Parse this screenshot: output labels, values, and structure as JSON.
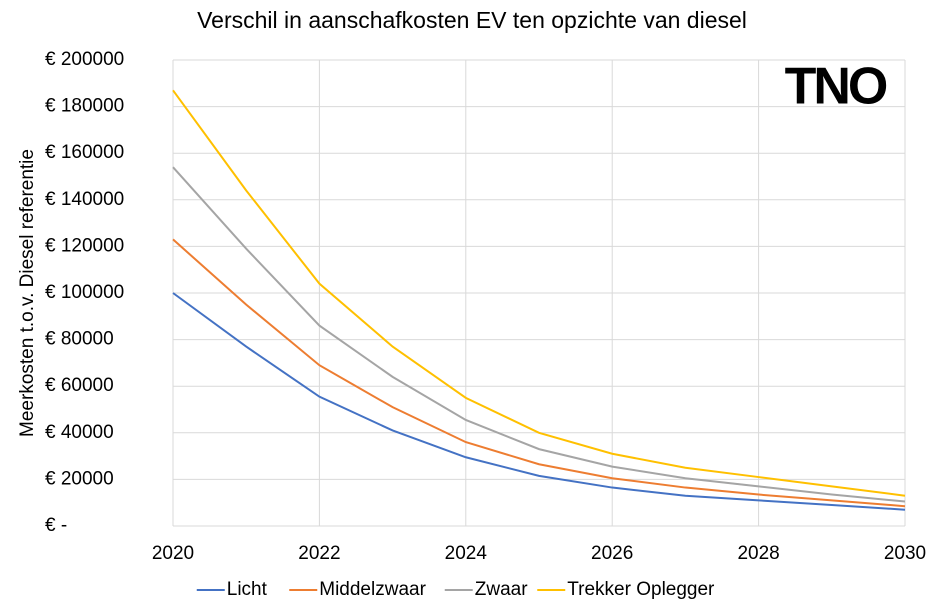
{
  "chart_data": {
    "type": "line",
    "title": "Verschil in aanschafkosten EV ten opzichte van diesel",
    "logo": "TNO",
    "y_label": "Meerkosten t.o.v. Diesel referentie",
    "x": [
      2020,
      2021,
      2022,
      2023,
      2024,
      2025,
      2026,
      2027,
      2028,
      2029,
      2030
    ],
    "series": [
      {
        "name": "Licht",
        "color": "#4472c4",
        "values": [
          100000,
          77000,
          55500,
          41000,
          29500,
          21500,
          16500,
          13000,
          11000,
          9000,
          7000
        ]
      },
      {
        "name": "Middelzwaar",
        "color": "#ed7d31",
        "values": [
          123000,
          95000,
          69000,
          51000,
          36000,
          26500,
          20500,
          16500,
          13500,
          11000,
          8500
        ]
      },
      {
        "name": "Zwaar",
        "color": "#a5a5a5",
        "values": [
          154000,
          119000,
          86000,
          64000,
          45500,
          33000,
          25500,
          20500,
          17000,
          13500,
          10500
        ]
      },
      {
        "name": "Trekker Oplegger",
        "color": "#ffc000",
        "values": [
          187000,
          144000,
          104000,
          77000,
          55000,
          40000,
          31000,
          25000,
          21000,
          17000,
          13000
        ]
      }
    ],
    "xlim": [
      2020,
      2030
    ],
    "xticks": [
      2020,
      2022,
      2024,
      2026,
      2028,
      2030
    ],
    "ylim": [
      0,
      200000
    ],
    "yticks": [
      {
        "value": 0,
        "label": "€ -"
      },
      {
        "value": 20000,
        "label": "€ 20000"
      },
      {
        "value": 40000,
        "label": "€ 40000"
      },
      {
        "value": 60000,
        "label": "€ 60000"
      },
      {
        "value": 80000,
        "label": "€ 80000"
      },
      {
        "value": 100000,
        "label": "€ 100000"
      },
      {
        "value": 120000,
        "label": "€ 120000"
      },
      {
        "value": 140000,
        "label": "€ 140000"
      },
      {
        "value": 160000,
        "label": "€ 160000"
      },
      {
        "value": 180000,
        "label": "€ 180000"
      },
      {
        "value": 200000,
        "label": "€ 200000"
      }
    ],
    "grid": true,
    "legend": "bottom"
  }
}
